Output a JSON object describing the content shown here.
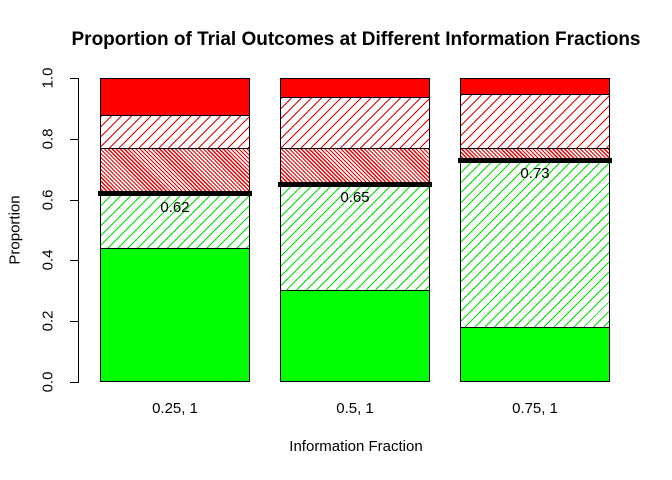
{
  "title": "Proportion of Trial Outcomes at Different Information Fractions",
  "axes": {
    "x_label": "Information Fraction",
    "y_label": "Proportion",
    "y_ticks": [
      "0.0",
      "0.2",
      "0.4",
      "0.6",
      "0.8",
      "1.0"
    ]
  },
  "chart_data": {
    "type": "bar",
    "stacked": true,
    "title": "Proportion of Trial Outcomes at Different Information Fractions",
    "xlabel": "Information Fraction",
    "ylabel": "Proportion",
    "ylim": [
      0,
      1
    ],
    "grid": false,
    "legend": false,
    "categories": [
      "0.25, 1",
      "0.5, 1",
      "0.75, 1"
    ],
    "series": [
      {
        "name": "green-solid",
        "pattern": "solid",
        "color": "#00ff00",
        "values": [
          0.44,
          0.3,
          0.18
        ]
      },
      {
        "name": "green-hatched",
        "pattern": "hatch-up",
        "color": "#00dd00",
        "values": [
          0.18,
          0.35,
          0.55
        ]
      },
      {
        "name": "red-dense-hatched",
        "pattern": "hatch-down",
        "color": "#ee0000",
        "values": [
          0.15,
          0.12,
          0.04
        ]
      },
      {
        "name": "red-light-hatched",
        "pattern": "hatch-up",
        "color": "#dd0000",
        "values": [
          0.11,
          0.17,
          0.18
        ]
      },
      {
        "name": "red-solid",
        "pattern": "solid",
        "color": "#ff0000",
        "values": [
          0.12,
          0.06,
          0.05
        ]
      }
    ],
    "threshold_lines": {
      "color": "#000000",
      "values": [
        0.62,
        0.65,
        0.73
      ],
      "labels": [
        "0.62",
        "0.65",
        "0.73"
      ]
    }
  }
}
